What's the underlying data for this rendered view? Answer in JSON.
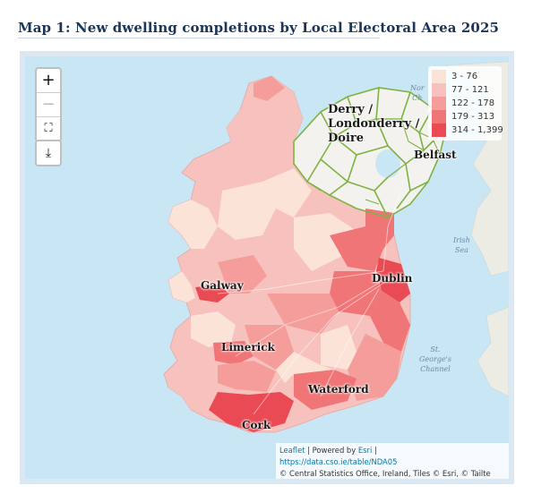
{
  "title": "Map 1: New dwelling completions by Local Electoral Area 2025",
  "zoom": {
    "in": "+",
    "out": "−",
    "fullscreen": "⛶"
  },
  "download_icon": "⤓",
  "legend": {
    "items": [
      {
        "label": "3 - 76",
        "color": "#fbe3d8"
      },
      {
        "label": "77 - 121",
        "color": "#f7c2bd"
      },
      {
        "label": "122 - 178",
        "color": "#f49d9b"
      },
      {
        "label": "179 - 313",
        "color": "#f07577"
      },
      {
        "label": "314 - 1,399",
        "color": "#e94a53"
      }
    ]
  },
  "cities": {
    "derry_1": "Derry /",
    "derry_2": "Londonderry /",
    "derry_3": "Doire",
    "belfast": "Belfast",
    "galway": "Galway",
    "dublin": "Dublin",
    "limerick": "Limerick",
    "waterford": "Waterford",
    "cork": "Cork"
  },
  "sea_labels": {
    "irish_sea_1": "Irish",
    "irish_sea_2": "Sea",
    "stg_1": "St.",
    "stg_2": "George's",
    "stg_3": "Channel",
    "no_1": "Nor",
    "no_2": "Ch"
  },
  "attribution": {
    "leaflet": "Leaflet",
    "powered": " | Powered by ",
    "esri": "Esri",
    "sep": " |",
    "url": "https://data.cso.ie/table/NDA05",
    "copyright": "© Central Statistics Office, Ireland, Tiles © Esri, © Tailte Éireann"
  }
}
